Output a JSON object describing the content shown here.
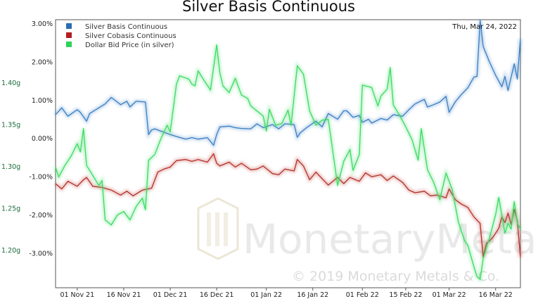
{
  "chart_data": {
    "type": "line",
    "title": "Silver Basis Continuous",
    "date_label": "Thu, Mar 24, 2022",
    "watermark": {
      "name": "MonetaryMetals",
      "copyright": "© 2019 Monetary Metals & Co."
    },
    "x_ticks": [
      "01 Nov 21",
      "16 Nov 21",
      "01 Dec 21",
      "16 Dec 21",
      "01 Jan 22",
      "16 Jan 22",
      "01 Feb 22",
      "15 Feb 22",
      "01 Mar 22",
      "16 Mar 22"
    ],
    "x_range": [
      "2021-10-25",
      "2022-03-24"
    ],
    "y_left": {
      "range": [
        -3.9,
        3.1
      ],
      "ticks": [
        3.0,
        2.0,
        1.0,
        0.0,
        -1.0,
        -2.0,
        -3.0
      ],
      "tick_labels": [
        "3.00%",
        "2.00%",
        "1.00%",
        "0.00%",
        "-1.00%",
        "-2.00%",
        "-3.00%"
      ]
    },
    "y_right": {
      "range": [
        1.155,
        1.475
      ],
      "ticks": [
        1.4,
        1.35,
        1.3,
        1.25,
        1.2
      ],
      "tick_labels": [
        "1.40g",
        "1.35g",
        "1.30g",
        "1.25g",
        "1.20g"
      ]
    },
    "series": [
      {
        "name": "Silver Basis Continuous",
        "axis": "left",
        "color": "#3b7fc4",
        "points": [
          [
            "2021-10-25",
            0.62
          ],
          [
            "2021-10-27",
            0.8
          ],
          [
            "2021-10-29",
            0.58
          ],
          [
            "2021-11-01",
            0.75
          ],
          [
            "2021-11-02",
            0.68
          ],
          [
            "2021-11-04",
            0.45
          ],
          [
            "2021-11-05",
            0.65
          ],
          [
            "2021-11-08",
            0.8
          ],
          [
            "2021-11-10",
            0.9
          ],
          [
            "2021-11-12",
            1.07
          ],
          [
            "2021-11-15",
            0.88
          ],
          [
            "2021-11-17",
            0.97
          ],
          [
            "2021-11-18",
            0.82
          ],
          [
            "2021-11-20",
            0.97
          ],
          [
            "2021-11-23",
            0.95
          ],
          [
            "2021-11-24",
            0.1
          ],
          [
            "2021-11-25",
            0.22
          ],
          [
            "2021-11-26",
            0.25
          ],
          [
            "2021-11-29",
            0.16
          ],
          [
            "2021-12-01",
            0.1
          ],
          [
            "2021-12-03",
            0.05
          ],
          [
            "2021-12-06",
            -0.02
          ],
          [
            "2021-12-08",
            0.02
          ],
          [
            "2021-12-10",
            -0.02
          ],
          [
            "2021-12-13",
            0.02
          ],
          [
            "2021-12-15",
            -0.18
          ],
          [
            "2021-12-16",
            0.1
          ],
          [
            "2021-12-17",
            0.3
          ],
          [
            "2021-12-20",
            0.32
          ],
          [
            "2021-12-22",
            0.28
          ],
          [
            "2021-12-24",
            0.26
          ],
          [
            "2021-12-27",
            0.25
          ],
          [
            "2021-12-29",
            0.38
          ],
          [
            "2021-12-31",
            0.28
          ],
          [
            "2022-01-03",
            0.36
          ],
          [
            "2022-01-05",
            0.25
          ],
          [
            "2022-01-07",
            0.38
          ],
          [
            "2022-01-10",
            0.36
          ],
          [
            "2022-01-11",
            0.03
          ],
          [
            "2022-01-12",
            0.15
          ],
          [
            "2022-01-14",
            0.28
          ],
          [
            "2022-01-17",
            0.45
          ],
          [
            "2022-01-19",
            0.3
          ],
          [
            "2022-01-21",
            0.65
          ],
          [
            "2022-01-24",
            0.5
          ],
          [
            "2022-01-26",
            0.72
          ],
          [
            "2022-01-27",
            0.72
          ],
          [
            "2022-01-29",
            0.55
          ],
          [
            "2022-01-31",
            0.6
          ],
          [
            "2022-02-01",
            0.42
          ],
          [
            "2022-02-03",
            0.5
          ],
          [
            "2022-02-04",
            0.4
          ],
          [
            "2022-02-07",
            0.52
          ],
          [
            "2022-02-09",
            0.48
          ],
          [
            "2022-02-11",
            0.62
          ],
          [
            "2022-02-14",
            0.58
          ],
          [
            "2022-02-16",
            0.75
          ],
          [
            "2022-02-18",
            0.9
          ],
          [
            "2022-02-21",
            1.02
          ],
          [
            "2022-02-22",
            0.82
          ],
          [
            "2022-02-24",
            0.88
          ],
          [
            "2022-02-26",
            0.95
          ],
          [
            "2022-02-28",
            1.1
          ],
          [
            "2022-03-01",
            0.68
          ],
          [
            "2022-03-03",
            0.96
          ],
          [
            "2022-03-05",
            1.15
          ],
          [
            "2022-03-07",
            1.32
          ],
          [
            "2022-03-09",
            1.6
          ],
          [
            "2022-03-10",
            1.62
          ],
          [
            "2022-03-11",
            3.08
          ],
          [
            "2022-03-12",
            2.4
          ],
          [
            "2022-03-14",
            2.0
          ],
          [
            "2022-03-16",
            1.65
          ],
          [
            "2022-03-18",
            1.35
          ],
          [
            "2022-03-19",
            1.62
          ],
          [
            "2022-03-20",
            1.25
          ],
          [
            "2022-03-21",
            1.6
          ],
          [
            "2022-03-22",
            1.95
          ],
          [
            "2022-03-23",
            1.55
          ],
          [
            "2022-03-24",
            2.6
          ]
        ]
      },
      {
        "name": "Silver Cobasis Continuous",
        "axis": "left",
        "color": "#b5322a",
        "points": [
          [
            "2021-10-25",
            -1.18
          ],
          [
            "2021-10-27",
            -1.32
          ],
          [
            "2021-10-29",
            -1.12
          ],
          [
            "2021-11-01",
            -1.25
          ],
          [
            "2021-11-03",
            -1.08
          ],
          [
            "2021-11-04",
            -1.02
          ],
          [
            "2021-11-06",
            -1.25
          ],
          [
            "2021-11-09",
            -1.28
          ],
          [
            "2021-11-12",
            -1.35
          ],
          [
            "2021-11-15",
            -1.48
          ],
          [
            "2021-11-17",
            -1.38
          ],
          [
            "2021-11-19",
            -1.5
          ],
          [
            "2021-11-22",
            -1.35
          ],
          [
            "2021-11-25",
            -1.3
          ],
          [
            "2021-11-27",
            -0.88
          ],
          [
            "2021-11-29",
            -0.8
          ],
          [
            "2021-12-01",
            -0.75
          ],
          [
            "2021-12-03",
            -0.58
          ],
          [
            "2021-12-06",
            -0.55
          ],
          [
            "2021-12-08",
            -0.6
          ],
          [
            "2021-12-10",
            -0.55
          ],
          [
            "2021-12-13",
            -0.62
          ],
          [
            "2021-12-15",
            -0.4
          ],
          [
            "2021-12-16",
            -0.65
          ],
          [
            "2021-12-17",
            -0.72
          ],
          [
            "2021-12-20",
            -0.62
          ],
          [
            "2021-12-22",
            -0.75
          ],
          [
            "2021-12-24",
            -0.65
          ],
          [
            "2021-12-27",
            -0.82
          ],
          [
            "2021-12-29",
            -0.8
          ],
          [
            "2021-12-31",
            -0.72
          ],
          [
            "2022-01-03",
            -0.92
          ],
          [
            "2022-01-05",
            -0.95
          ],
          [
            "2022-01-07",
            -0.8
          ],
          [
            "2022-01-10",
            -0.85
          ],
          [
            "2022-01-11",
            -0.55
          ],
          [
            "2022-01-13",
            -0.72
          ],
          [
            "2022-01-15",
            -1.08
          ],
          [
            "2022-01-17",
            -0.88
          ],
          [
            "2022-01-19",
            -1.05
          ],
          [
            "2022-01-21",
            -1.22
          ],
          [
            "2022-01-24",
            -1.02
          ],
          [
            "2022-01-26",
            -1.18
          ],
          [
            "2022-01-28",
            -1.02
          ],
          [
            "2022-01-31",
            -1.12
          ],
          [
            "2022-02-02",
            -0.9
          ],
          [
            "2022-02-04",
            -1.0
          ],
          [
            "2022-02-07",
            -0.95
          ],
          [
            "2022-02-09",
            -1.1
          ],
          [
            "2022-02-11",
            -0.98
          ],
          [
            "2022-02-14",
            -1.15
          ],
          [
            "2022-02-16",
            -1.35
          ],
          [
            "2022-02-18",
            -1.42
          ],
          [
            "2022-02-21",
            -1.38
          ],
          [
            "2022-02-23",
            -1.5
          ],
          [
            "2022-02-25",
            -1.48
          ],
          [
            "2022-02-28",
            -1.55
          ],
          [
            "2022-03-01",
            -1.32
          ],
          [
            "2022-03-03",
            -1.6
          ],
          [
            "2022-03-05",
            -1.72
          ],
          [
            "2022-03-07",
            -1.8
          ],
          [
            "2022-03-09",
            -2.05
          ],
          [
            "2022-03-11",
            -2.22
          ],
          [
            "2022-03-12",
            -3.1
          ],
          [
            "2022-03-13",
            -2.75
          ],
          [
            "2022-03-15",
            -2.6
          ],
          [
            "2022-03-17",
            -2.35
          ],
          [
            "2022-03-18",
            -2.05
          ],
          [
            "2022-03-19",
            -2.2
          ],
          [
            "2022-03-20",
            -1.95
          ],
          [
            "2022-03-21",
            -2.25
          ],
          [
            "2022-03-22",
            -1.85
          ],
          [
            "2022-03-23",
            -2.15
          ],
          [
            "2022-03-24",
            -3.1
          ]
        ]
      },
      {
        "name": "Dollar Bid Price (in silver)",
        "axis": "right",
        "color": "#3cdb64",
        "points": [
          [
            "2021-10-25",
            1.299
          ],
          [
            "2021-10-26",
            1.287
          ],
          [
            "2021-10-28",
            1.301
          ],
          [
            "2021-10-30",
            1.312
          ],
          [
            "2021-11-01",
            1.327
          ],
          [
            "2021-11-02",
            1.317
          ],
          [
            "2021-11-03",
            1.345
          ],
          [
            "2021-11-04",
            1.301
          ],
          [
            "2021-11-06",
            1.289
          ],
          [
            "2021-11-08",
            1.277
          ],
          [
            "2021-11-09",
            1.283
          ],
          [
            "2021-11-10",
            1.236
          ],
          [
            "2021-11-12",
            1.23
          ],
          [
            "2021-11-14",
            1.242
          ],
          [
            "2021-11-16",
            1.246
          ],
          [
            "2021-11-18",
            1.236
          ],
          [
            "2021-11-20",
            1.252
          ],
          [
            "2021-11-22",
            1.262
          ],
          [
            "2021-11-23",
            1.248
          ],
          [
            "2021-11-24",
            1.307
          ],
          [
            "2021-11-26",
            1.314
          ],
          [
            "2021-11-28",
            1.333
          ],
          [
            "2021-11-30",
            1.349
          ],
          [
            "2021-12-01",
            1.341
          ],
          [
            "2021-12-03",
            1.398
          ],
          [
            "2021-12-04",
            1.408
          ],
          [
            "2021-12-07",
            1.404
          ],
          [
            "2021-12-08",
            1.398
          ],
          [
            "2021-12-09",
            1.396
          ],
          [
            "2021-12-10",
            1.414
          ],
          [
            "2021-12-12",
            1.402
          ],
          [
            "2021-12-14",
            1.391
          ],
          [
            "2021-12-16",
            1.445
          ],
          [
            "2021-12-17",
            1.412
          ],
          [
            "2021-12-18",
            1.396
          ],
          [
            "2021-12-20",
            1.388
          ],
          [
            "2021-12-22",
            1.405
          ],
          [
            "2021-12-24",
            1.385
          ],
          [
            "2021-12-26",
            1.381
          ],
          [
            "2021-12-27",
            1.372
          ],
          [
            "2021-12-29",
            1.366
          ],
          [
            "2021-12-31",
            1.36
          ],
          [
            "2022-01-01",
            1.342
          ],
          [
            "2022-01-02",
            1.368
          ],
          [
            "2022-01-04",
            1.349
          ],
          [
            "2022-01-06",
            1.351
          ],
          [
            "2022-01-08",
            1.367
          ],
          [
            "2022-01-09",
            1.349
          ],
          [
            "2022-01-11",
            1.42
          ],
          [
            "2022-01-13",
            1.41
          ],
          [
            "2022-01-15",
            1.366
          ],
          [
            "2022-01-17",
            1.349
          ],
          [
            "2022-01-19",
            1.355
          ],
          [
            "2022-01-21",
            1.356
          ],
          [
            "2022-01-22",
            1.33
          ],
          [
            "2022-01-24",
            1.277
          ],
          [
            "2022-01-26",
            1.306
          ],
          [
            "2022-01-28",
            1.32
          ],
          [
            "2022-01-29",
            1.295
          ],
          [
            "2022-01-31",
            1.314
          ],
          [
            "2022-02-01",
            1.397
          ],
          [
            "2022-02-02",
            1.396
          ],
          [
            "2022-02-04",
            1.394
          ],
          [
            "2022-02-06",
            1.372
          ],
          [
            "2022-02-07",
            1.384
          ],
          [
            "2022-02-09",
            1.392
          ],
          [
            "2022-02-10",
            1.418
          ],
          [
            "2022-02-11",
            1.373
          ],
          [
            "2022-02-13",
            1.361
          ],
          [
            "2022-02-15",
            1.347
          ],
          [
            "2022-02-17",
            1.332
          ],
          [
            "2022-02-19",
            1.307
          ],
          [
            "2022-02-20",
            1.345
          ],
          [
            "2022-02-22",
            1.296
          ],
          [
            "2022-02-24",
            1.281
          ],
          [
            "2022-02-26",
            1.26
          ],
          [
            "2022-02-28",
            1.292
          ],
          [
            "2022-03-02",
            1.272
          ],
          [
            "2022-03-04",
            1.233
          ],
          [
            "2022-03-06",
            1.211
          ],
          [
            "2022-03-07",
            1.206
          ],
          [
            "2022-03-09",
            1.18
          ],
          [
            "2022-03-10",
            1.168
          ],
          [
            "2022-03-11",
            1.165
          ],
          [
            "2022-03-12",
            1.19
          ],
          [
            "2022-03-14",
            1.214
          ],
          [
            "2022-03-16",
            1.242
          ],
          [
            "2022-03-17",
            1.263
          ],
          [
            "2022-03-19",
            1.22
          ],
          [
            "2022-03-20",
            1.232
          ],
          [
            "2022-03-21",
            1.225
          ],
          [
            "2022-03-22",
            1.258
          ],
          [
            "2022-03-23",
            1.232
          ],
          [
            "2022-03-24",
            1.225
          ]
        ]
      }
    ],
    "grid": false,
    "legend_position": "top-left"
  }
}
